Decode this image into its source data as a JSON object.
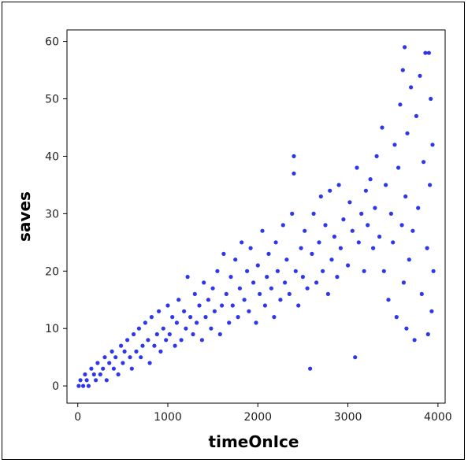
{
  "chart_data": {
    "type": "scatter",
    "title": "",
    "xlabel": "timeOnIce",
    "ylabel": "saves",
    "xlim": [
      -120,
      4080
    ],
    "ylim": [
      -3,
      62
    ],
    "xticks": [
      0,
      1000,
      2000,
      3000,
      4000
    ],
    "yticks": [
      0,
      10,
      20,
      30,
      40,
      50,
      60
    ],
    "grid": false,
    "legend": "none",
    "colors": {
      "point": "#0a14e6"
    },
    "series": [
      {
        "points": [
          [
            10,
            0
          ],
          [
            30,
            1
          ],
          [
            60,
            0
          ],
          [
            80,
            2
          ],
          [
            100,
            1
          ],
          [
            120,
            0
          ],
          [
            150,
            3
          ],
          [
            180,
            2
          ],
          [
            200,
            1
          ],
          [
            220,
            4
          ],
          [
            250,
            2
          ],
          [
            280,
            3
          ],
          [
            300,
            5
          ],
          [
            320,
            1
          ],
          [
            350,
            4
          ],
          [
            380,
            6
          ],
          [
            400,
            3
          ],
          [
            420,
            5
          ],
          [
            450,
            2
          ],
          [
            480,
            7
          ],
          [
            500,
            4
          ],
          [
            520,
            6
          ],
          [
            550,
            8
          ],
          [
            580,
            5
          ],
          [
            600,
            3
          ],
          [
            620,
            9
          ],
          [
            650,
            6
          ],
          [
            680,
            10
          ],
          [
            700,
            5
          ],
          [
            720,
            7
          ],
          [
            750,
            11
          ],
          [
            780,
            8
          ],
          [
            800,
            4
          ],
          [
            820,
            12
          ],
          [
            850,
            7
          ],
          [
            880,
            9
          ],
          [
            900,
            13
          ],
          [
            920,
            6
          ],
          [
            950,
            10
          ],
          [
            980,
            8
          ],
          [
            1000,
            14
          ],
          [
            1020,
            9
          ],
          [
            1050,
            12
          ],
          [
            1080,
            7
          ],
          [
            1100,
            11
          ],
          [
            1120,
            15
          ],
          [
            1150,
            8
          ],
          [
            1180,
            13
          ],
          [
            1200,
            10
          ],
          [
            1220,
            19
          ],
          [
            1250,
            12
          ],
          [
            1280,
            9
          ],
          [
            1300,
            16
          ],
          [
            1320,
            11
          ],
          [
            1350,
            14
          ],
          [
            1380,
            8
          ],
          [
            1400,
            18
          ],
          [
            1420,
            12
          ],
          [
            1450,
            15
          ],
          [
            1480,
            10
          ],
          [
            1500,
            17
          ],
          [
            1520,
            13
          ],
          [
            1550,
            20
          ],
          [
            1580,
            9
          ],
          [
            1600,
            14
          ],
          [
            1620,
            23
          ],
          [
            1650,
            16
          ],
          [
            1680,
            11
          ],
          [
            1700,
            19
          ],
          [
            1720,
            14
          ],
          [
            1750,
            22
          ],
          [
            1780,
            12
          ],
          [
            1800,
            17
          ],
          [
            1820,
            25
          ],
          [
            1850,
            15
          ],
          [
            1880,
            20
          ],
          [
            1900,
            13
          ],
          [
            1920,
            24
          ],
          [
            1950,
            18
          ],
          [
            1980,
            11
          ],
          [
            2000,
            21
          ],
          [
            2020,
            16
          ],
          [
            2050,
            27
          ],
          [
            2080,
            14
          ],
          [
            2100,
            19
          ],
          [
            2120,
            23
          ],
          [
            2150,
            17
          ],
          [
            2180,
            12
          ],
          [
            2200,
            25
          ],
          [
            2220,
            20
          ],
          [
            2250,
            15
          ],
          [
            2280,
            28
          ],
          [
            2300,
            18
          ],
          [
            2320,
            22
          ],
          [
            2350,
            16
          ],
          [
            2380,
            30
          ],
          [
            2400,
            40
          ],
          [
            2400,
            37
          ],
          [
            2420,
            20
          ],
          [
            2450,
            14
          ],
          [
            2480,
            24
          ],
          [
            2500,
            19
          ],
          [
            2520,
            27
          ],
          [
            2550,
            17
          ],
          [
            2580,
            3
          ],
          [
            2600,
            23
          ],
          [
            2620,
            30
          ],
          [
            2650,
            18
          ],
          [
            2680,
            25
          ],
          [
            2700,
            33
          ],
          [
            2720,
            20
          ],
          [
            2750,
            28
          ],
          [
            2780,
            16
          ],
          [
            2800,
            34
          ],
          [
            2820,
            22
          ],
          [
            2850,
            26
          ],
          [
            2880,
            19
          ],
          [
            2900,
            35
          ],
          [
            2920,
            24
          ],
          [
            2950,
            29
          ],
          [
            3000,
            21
          ],
          [
            3020,
            32
          ],
          [
            3050,
            27
          ],
          [
            3080,
            5
          ],
          [
            3100,
            38
          ],
          [
            3120,
            25
          ],
          [
            3150,
            30
          ],
          [
            3180,
            20
          ],
          [
            3200,
            34
          ],
          [
            3220,
            28
          ],
          [
            3250,
            36
          ],
          [
            3280,
            24
          ],
          [
            3300,
            31
          ],
          [
            3320,
            40
          ],
          [
            3350,
            26
          ],
          [
            3380,
            45
          ],
          [
            3400,
            20
          ],
          [
            3420,
            35
          ],
          [
            3450,
            15
          ],
          [
            3480,
            30
          ],
          [
            3500,
            25
          ],
          [
            3520,
            42
          ],
          [
            3540,
            12
          ],
          [
            3560,
            38
          ],
          [
            3580,
            49
          ],
          [
            3600,
            28
          ],
          [
            3610,
            55
          ],
          [
            3620,
            18
          ],
          [
            3630,
            59
          ],
          [
            3640,
            33
          ],
          [
            3650,
            10
          ],
          [
            3660,
            44
          ],
          [
            3680,
            22
          ],
          [
            3700,
            52
          ],
          [
            3720,
            27
          ],
          [
            3740,
            8
          ],
          [
            3760,
            47
          ],
          [
            3780,
            31
          ],
          [
            3800,
            54
          ],
          [
            3820,
            16
          ],
          [
            3840,
            39
          ],
          [
            3860,
            58
          ],
          [
            3880,
            24
          ],
          [
            3890,
            9
          ],
          [
            3900,
            58
          ],
          [
            3910,
            35
          ],
          [
            3920,
            50
          ],
          [
            3930,
            13
          ],
          [
            3940,
            42
          ],
          [
            3950,
            20
          ]
        ]
      }
    ]
  }
}
